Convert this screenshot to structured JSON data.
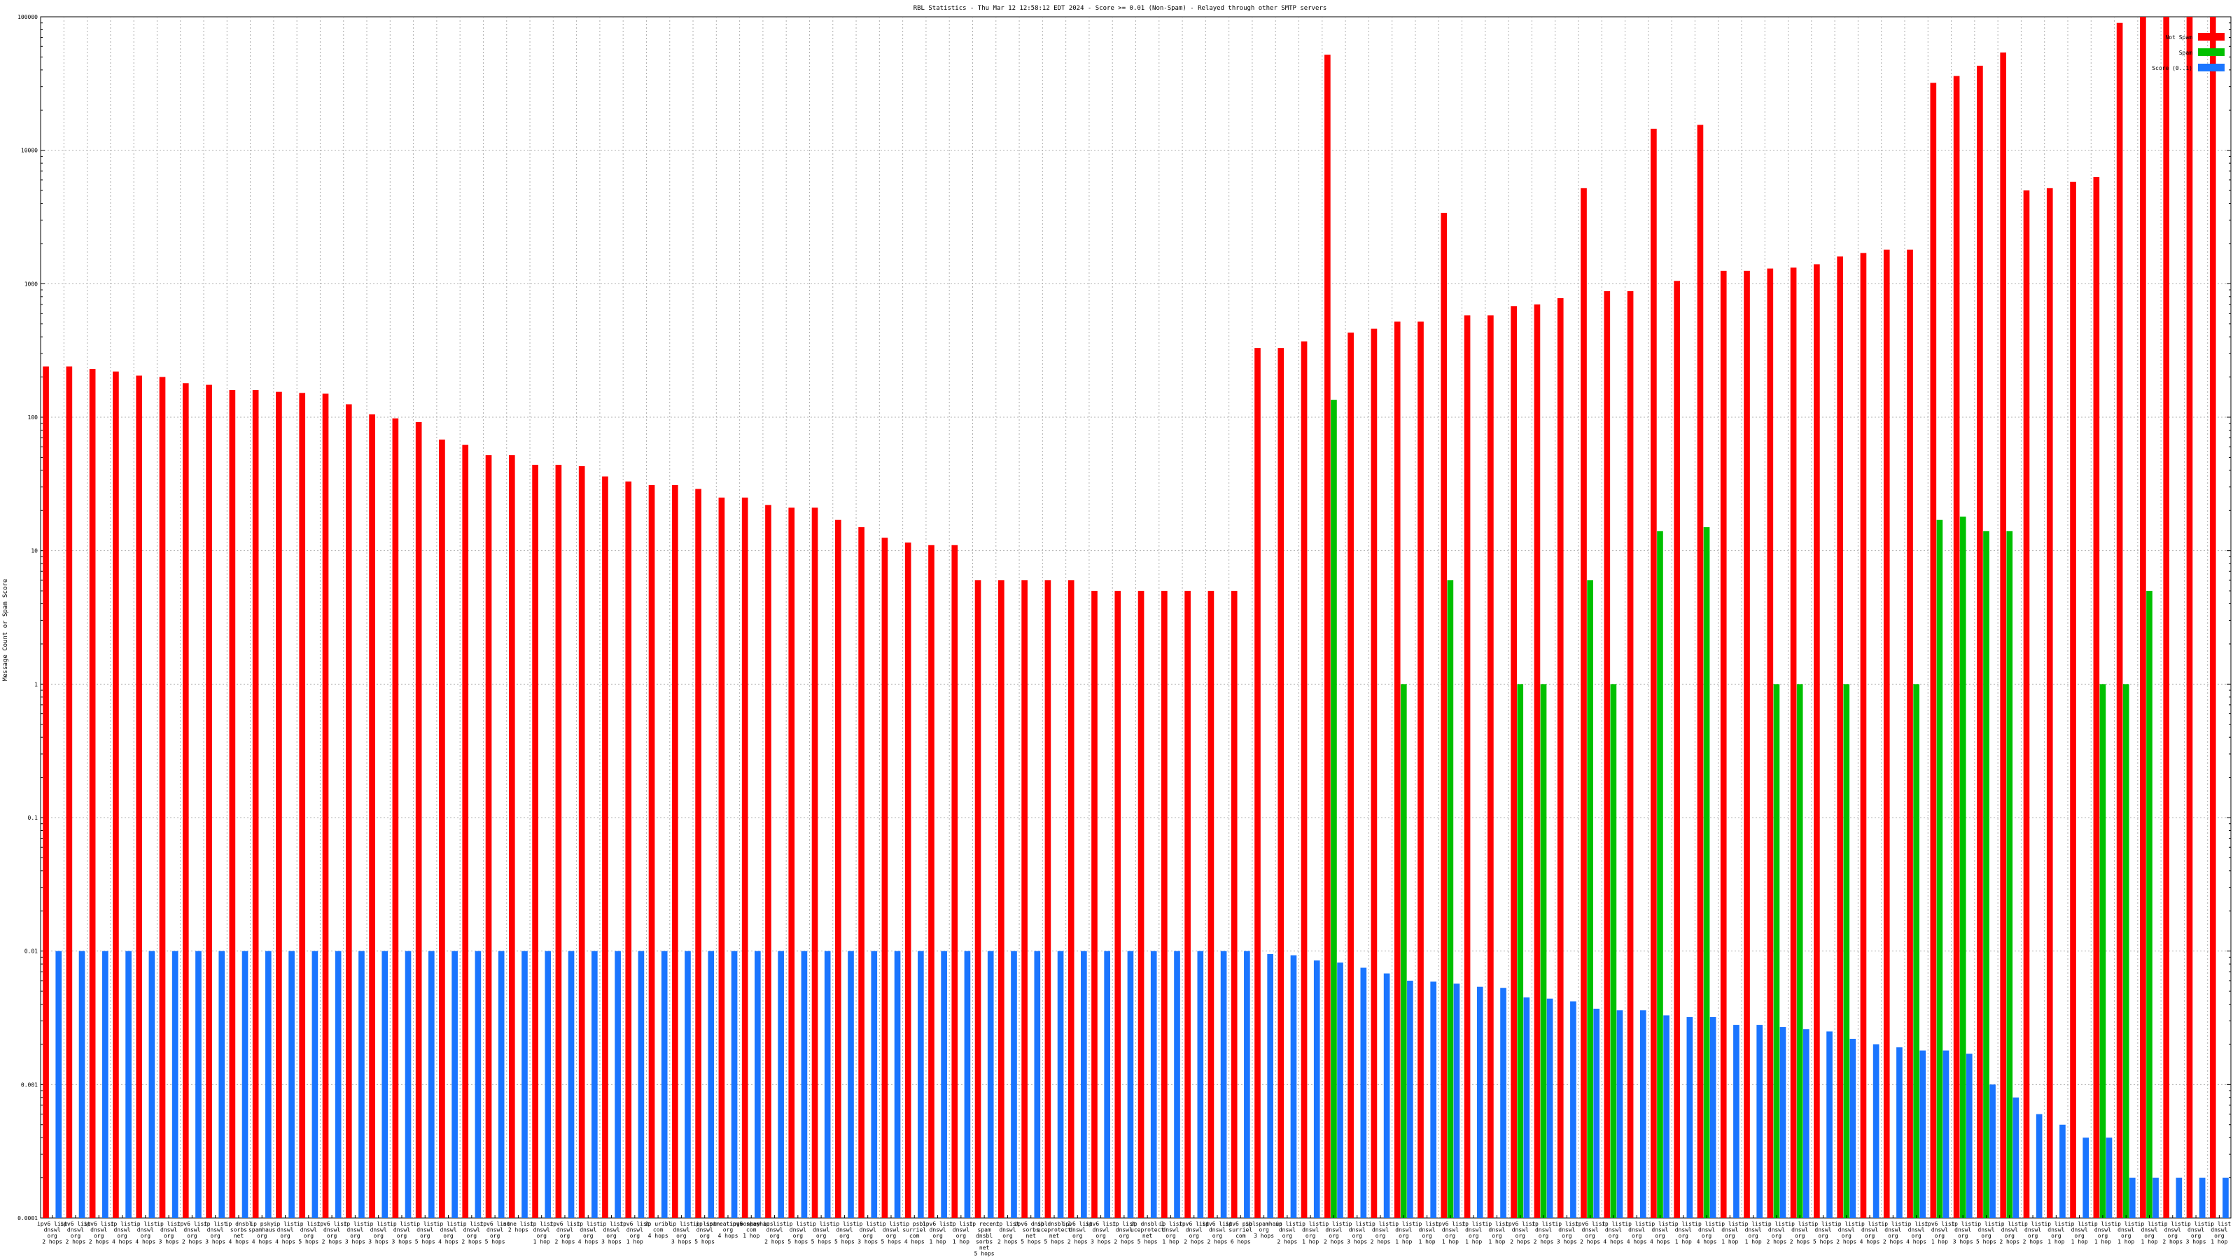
{
  "chart_data": {
    "type": "bar",
    "title": "RBL Statistics - Thu Mar 12 12:58:12 EDT 2024 - Score >= 0.01 (Non-Spam) - Relayed through other SMTP servers",
    "ylabel": "Message Count or Spam Score",
    "yscale": "log",
    "ylim": [
      0.0001,
      100000
    ],
    "yticks": [
      "100000",
      "10000",
      "1000",
      "100",
      "10",
      "1",
      "0.1",
      "0.01",
      "0.001",
      "0.0001"
    ],
    "legend_position": "top-right",
    "grid": true,
    "categories": [
      "ipv6 list, dnswl, org, 2 hops",
      "ipv6 list, dnswl, org, 2 hops",
      "ipv6 list, dnswl, org, 2 hops",
      "ip list, dnswl, org, 4 hops",
      "ip list, dnswl, org, 4 hops",
      "ip list, dnswl, org, 3 hops",
      "ipv6 list, dnswl, org, 2 hops",
      "ip list, dnswl, org, 3 hops",
      "ip dnsbl, sorbs, net, 4 hops",
      "ip psky, spamhaus, org, 4 hops",
      "ip list, dnswl, org, 4 hops",
      "ip list, dnswl, org, 5 hops",
      "ipv6 list, dnswl, org, 2 hops",
      "ip list, dnswl, org, 3 hops",
      "ip list, dnswl, org, 3 hops",
      "ip list, dnswl, org, 3 hops",
      "ip list, dnswl, org, 5 hops",
      "ip list, dnswl, org, 4 hops",
      "ip list, dnswl, org, 2 hops",
      "ipv6 list, dnswl, org, 5 hops",
      "none list, 2 hops",
      "ip list, dnswl, org, 1 hop",
      "ipv6 list, dnswl, org, 2 hops",
      "ip list, dnswl, org, 4 hops",
      "ip list, dnswl, org, 3 hops",
      "ipv6 list, dnswl, org, 1 hop",
      "ip uribl, com, 4 hops",
      "ip list, dnswl, org, 3 hops",
      "ip list, dnswl, org, 5 hops",
      "ip spameatingmonkey, org, 4 hops",
      "ipv6 spamhaus, com, 1 hop",
      "ip list, dnswl, org, 2 hops",
      "ip list, dnswl, org, 5 hops",
      "ip list, dnswl, org, 5 hops",
      "ip list, dnswl, org, 5 hops",
      "ip list, dnswl, org, 3 hops",
      "ip list, dnswl, org, 5 hops",
      "ip psbl, surriel, com, 4 hops",
      "ipv6 list, dnswl, org, 1 hop",
      "ip list, dnswl, org, 1 hop",
      "ip recent, spam, dnsbl, sorbs, net, 5 hops",
      "ip list, dnswl, org, 2 hops",
      "ipv6 dnsbl, sorbs, net, 5 hops",
      "ip dnsbl-2, uceprotect, net, 5 hops",
      "ipv6 list, dnswl, org, 2 hops",
      "ipv6 list, dnswl, org, 3 hops",
      "ip list, dnswl, org, 2 hops",
      "ip dnsbl-1, uceprotect, net, 5 hops",
      "ip list, dnswl, org, 1 hop",
      "ipv6 list, dnswl, org, 2 hops",
      "ipv6 list, dnswl, org, 2 hops",
      "ipv6 psbl, surriel, com, 6 hops",
      "ip spamhaus, org, 3 hops",
      "ip list, dnswl, org, 2 hops",
      "ip list, dnswl, org, 1 hop",
      "ip list, dnswl, org, 2 hops",
      "ip list, dnswl, org, 3 hops",
      "ip list, dnswl, org, 2 hops",
      "ip list, dnswl, org, 1 hop",
      "ip list, dnswl, org, 1 hop",
      "ipv6 list, dnswl, org, 1 hop",
      "ip list, dnswl, org, 1 hop",
      "ip list, dnswl, org, 1 hop",
      "ipv6 list, dnswl, org, 2 hops",
      "ip list, dnswl, org, 2 hops",
      "ip list, dnswl, org, 3 hops",
      "ipv6 list, dnswl, org, 2 hops",
      "ip list, dnswl, org, 4 hops",
      "ip list, dnswl, org, 4 hops",
      "ip list, dnswl, org, 4 hops",
      "ip list, dnswl, org, 1 hop",
      "ip list, dnswl, org, 4 hops",
      "ip list, dnswl, org, 1 hop",
      "ip list, dnswl, org, 1 hop",
      "ip list, dnswl, org, 2 hops",
      "ip list, dnswl, org, 2 hops",
      "ip list, dnswl, org, 5 hops",
      "ip list, dnswl, org, 2 hops",
      "ip list, dnswl, org, 4 hops",
      "ip list, dnswl, org, 2 hops",
      "ip list, dnswl, org, 4 hops",
      "ipv6 list, dnswl, org, 1 hop",
      "ip list, dnswl, org, 3 hops",
      "ip list, dnswl, org, 5 hops",
      "ip list, dnswl, org, 2 hops",
      "ip list, dnswl, org, 2 hops",
      "ip list, dnswl, org, 1 hop",
      "ip list, dnswl, org, 1 hop",
      "ip list, dnswl, org, 1 hop",
      "ip list, dnswl, org, 1 hop",
      "ip list, dnswl, org, 1 hop",
      "ip list, dnswl, org, 2 hops",
      "ip list, dnswl, org, 3 hops",
      "ip list, dnswl, org, 1 hop"
    ],
    "series": [
      {
        "name": "Not Spam",
        "color": "#ff0000",
        "values": [
          240,
          240,
          230,
          220,
          205,
          200,
          180,
          175,
          160,
          160,
          155,
          152,
          150,
          125,
          105,
          98,
          92,
          68,
          62,
          52,
          52,
          44,
          44,
          43,
          36,
          33,
          31,
          31,
          29,
          25,
          25,
          22,
          21,
          21,
          17,
          15,
          12.5,
          11.5,
          11,
          11,
          6,
          6,
          6,
          6,
          6,
          5,
          5,
          5,
          5,
          5,
          5,
          5,
          330,
          330,
          370,
          52000,
          430,
          460,
          520,
          520,
          3400,
          580,
          580,
          680,
          700,
          780,
          5200,
          880,
          880,
          14500,
          1050,
          15500,
          1250,
          1250,
          1300,
          1320,
          1400,
          1600,
          1700,
          1800,
          1800,
          32000,
          36000,
          43000,
          54000,
          5000,
          5200,
          5800,
          6300,
          90000,
          100000,
          100000,
          100000,
          100000
        ]
      },
      {
        "name": "Spam",
        "color": "#00c000",
        "values": [
          0,
          0,
          0,
          0,
          0,
          0,
          0,
          0,
          0,
          0,
          0,
          0,
          0,
          0,
          0,
          0,
          0,
          0,
          0,
          0,
          0,
          0,
          0,
          0,
          0,
          0,
          0,
          0,
          0,
          0,
          0,
          0,
          0,
          0,
          0,
          0,
          0,
          0,
          0,
          0,
          0,
          0,
          0,
          0,
          0,
          0,
          0,
          0,
          0,
          0,
          0,
          0,
          0,
          0,
          0,
          135,
          0,
          0,
          1,
          0,
          6,
          0,
          0,
          1,
          1,
          0,
          6,
          1,
          0,
          14,
          0,
          15,
          0,
          0,
          1,
          1,
          0,
          1,
          0,
          0,
          1,
          17,
          18,
          14,
          14,
          0,
          0,
          0,
          1,
          1,
          5,
          0,
          0,
          0
        ]
      },
      {
        "name": "Score (0..1)",
        "color": "#1a75ff",
        "values": [
          0.01,
          0.01,
          0.01,
          0.01,
          0.01,
          0.01,
          0.01,
          0.01,
          0.01,
          0.01,
          0.01,
          0.01,
          0.01,
          0.01,
          0.01,
          0.01,
          0.01,
          0.01,
          0.01,
          0.01,
          0.01,
          0.01,
          0.01,
          0.01,
          0.01,
          0.01,
          0.01,
          0.01,
          0.01,
          0.01,
          0.01,
          0.01,
          0.01,
          0.01,
          0.01,
          0.01,
          0.01,
          0.01,
          0.01,
          0.01,
          0.01,
          0.01,
          0.01,
          0.01,
          0.01,
          0.01,
          0.01,
          0.01,
          0.01,
          0.01,
          0.01,
          0.01,
          0.0095,
          0.0093,
          0.0085,
          0.0082,
          0.0075,
          0.0068,
          0.006,
          0.0059,
          0.0057,
          0.0054,
          0.0053,
          0.0045,
          0.0044,
          0.0042,
          0.0037,
          0.0036,
          0.0036,
          0.0033,
          0.0032,
          0.0032,
          0.0028,
          0.0028,
          0.0027,
          0.0026,
          0.0025,
          0.0022,
          0.002,
          0.0019,
          0.0018,
          0.0018,
          0.0017,
          0.001,
          0.0008,
          0.0006,
          0.0005,
          0.0004,
          0.0004,
          0.0002,
          0.0002,
          0.0002,
          0.0002,
          0.0002
        ]
      }
    ]
  }
}
